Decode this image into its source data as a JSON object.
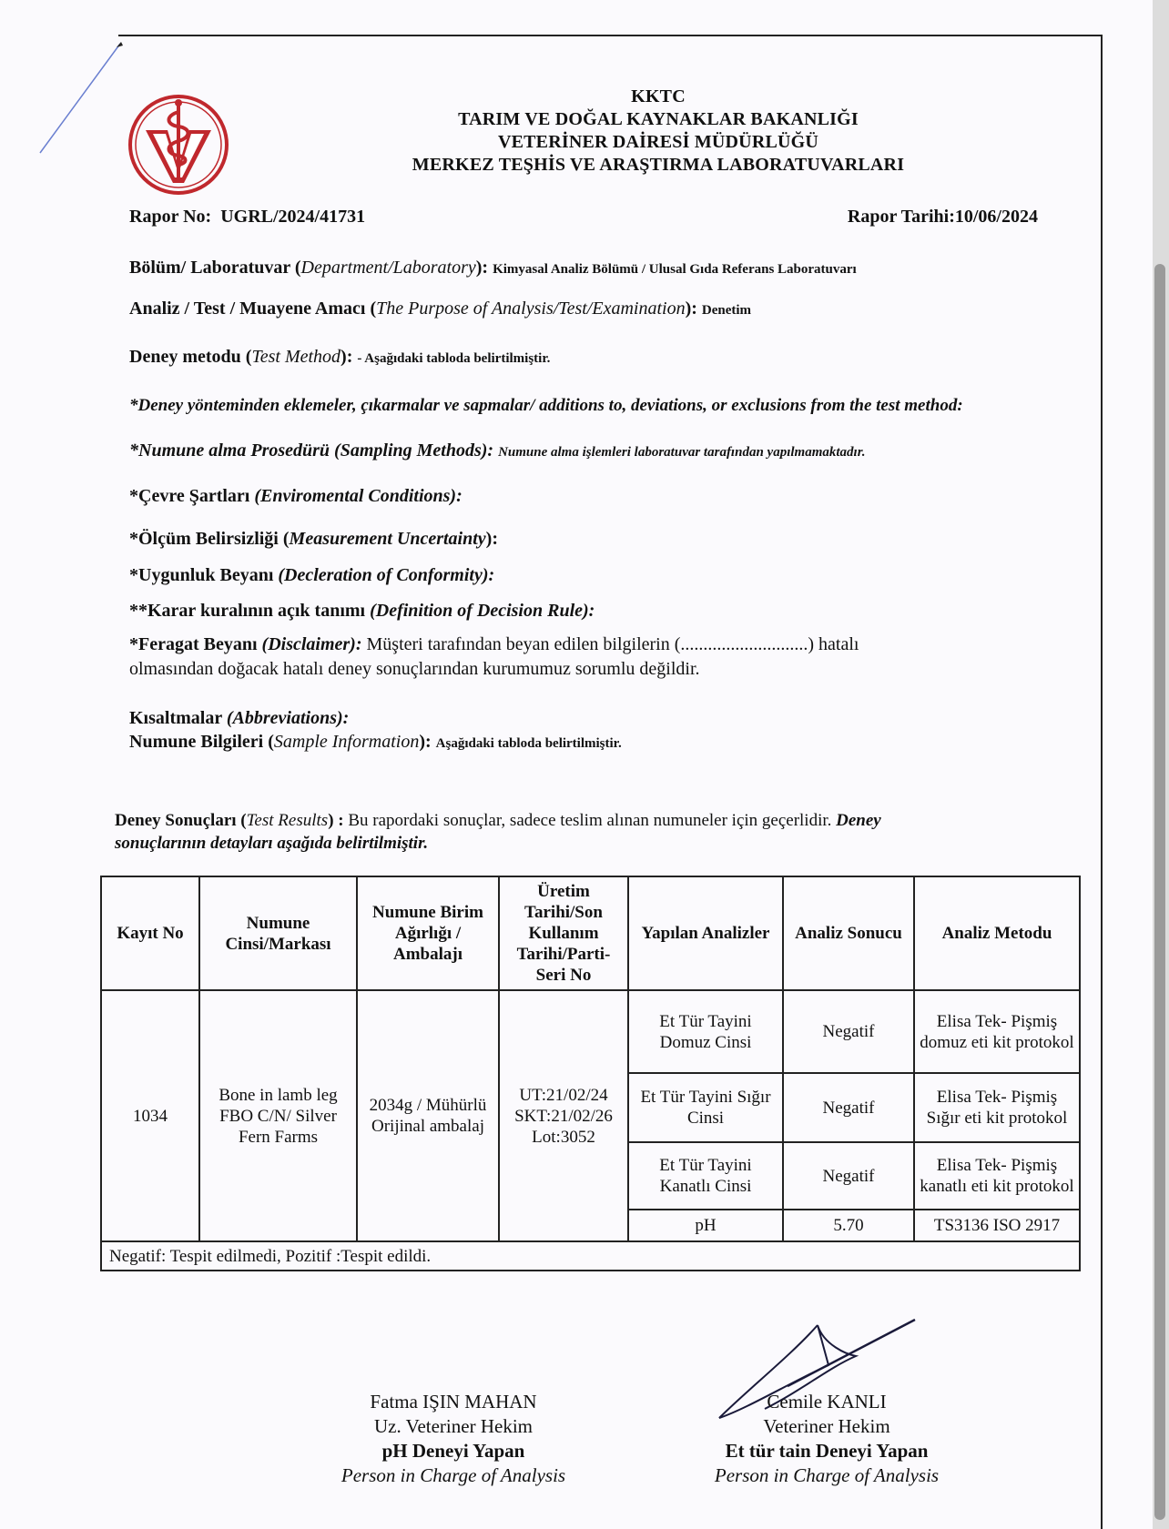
{
  "header": {
    "line1": "KKTC",
    "line2": "TARIM VE DOĞAL KAYNAKLAR BAKANLIĞI",
    "line3": "VETERİNER DAİRESİ MÜDÜRLÜĞÜ",
    "line4": "MERKEZ TEŞHİS VE ARAŞTIRMA LABORATUVARLARI",
    "logo_color": "#c0282d"
  },
  "report": {
    "no_label": "Rapor No:",
    "no_value": "UGRL/2024/41731",
    "date_label": "Rapor Tarihi:",
    "date_value": "10/06/2024"
  },
  "fields": {
    "dept_label": "Bölüm/ Laboratuvar (",
    "dept_label_en": "Department/Laboratory",
    "dept_label_end": "):",
    "dept_value": "Kimyasal Analiz Bölümü / Ulusal Gıda Referans Laboratuvarı",
    "purpose_label": "Analiz / Test / Muayene Amacı (",
    "purpose_label_en": "The Purpose of Analysis/Test/Examination",
    "purpose_label_end": "):",
    "purpose_value": "Denetim",
    "method_label": "Deney metodu (",
    "method_label_en": "Test Method",
    "method_label_end": "):",
    "method_value": "- Aşağıdaki tabloda belirtilmiştir.",
    "deviations": "*Deney yönteminden eklemeler, çıkarmalar ve sapmalar/ additions to, deviations, or exclusions from the test method:",
    "sampling_label": "*Numune alma Prosedürü (Sampling Methods):",
    "sampling_value": "Numune alma işlemleri laboratuvar tarafından yapılmamaktadır.",
    "env_label": "*Çevre Şartları",
    "env_label_en": "(Enviromental Conditions):",
    "uncert_label": "*Ölçüm Belirsizliği (",
    "uncert_label_en": "Measurement Uncertainty",
    "uncert_label_end": "):",
    "conf_label": "*Uygunluk Beyanı",
    "conf_label_en": "(Decleration of Conformity):",
    "rule_label": "**Karar kuralının açık tanımı",
    "rule_label_en": "(Definition of Decision Rule):",
    "disc_label": "*Feragat Beyanı",
    "disc_label_en": "(Disclaimer):",
    "disc_text1": "Müşteri tarafından beyan edilen bilgilerin (............................) hatalı",
    "disc_text2": "olmasından doğacak hatalı deney sonuçlarından kurumumuz sorumlu değildir.",
    "abbr_label": "Kısaltmalar",
    "abbr_label_en": "(Abbreviations):",
    "sample_label": "Numune Bilgileri (",
    "sample_label_en": "Sample Information",
    "sample_label_end": "):",
    "sample_value": "Aşağıdaki tabloda belirtilmiştir."
  },
  "results": {
    "label": "Deney Sonuçları (",
    "label_en": "Test Results",
    "label_end": ") :",
    "text": "Bu rapordaki sonuçlar, sadece teslim alınan numuneler için geçerlidir.",
    "text_bold1": "Deney",
    "text_bold2": "sonuçlarının detayları aşağıda belirtilmiştir."
  },
  "table": {
    "headers": [
      "Kayıt No",
      "Numune Cinsi/Markası",
      "Numune Birim Ağırlığı / Ambalajı",
      "Üretim Tarihi/Son Kullanım Tarihi/Parti-Seri No",
      "Yapılan Analizler",
      "Analiz Sonucu",
      "Analiz Metodu"
    ],
    "record_no": "1034",
    "sample": "Bone in lamb leg FBO C/N/ Silver Fern Farms",
    "weight": "2034g / Mühürlü Orijinal ambalaj",
    "dates": [
      "UT:21/02/24",
      "SKT:21/02/26",
      "Lot:3052"
    ],
    "analyses": [
      {
        "name": "Et Tür Tayini Domuz Cinsi",
        "result": "Negatif",
        "method": "Elisa Tek- Pişmiş domuz eti kit protokol"
      },
      {
        "name": "Et Tür Tayini Sığır Cinsi",
        "result": "Negatif",
        "method": "Elisa Tek- Pişmiş Sığır eti kit protokol"
      },
      {
        "name": "Et Tür Tayini Kanatlı Cinsi",
        "result": "Negatif",
        "method": "Elisa Tek- Pişmiş kanatlı eti kit protokol"
      },
      {
        "name": "pH",
        "result": "5.70",
        "method": "TS3136 ISO 2917"
      }
    ],
    "footnote": "Negatif: Tespit edilmedi, Pozitif :Tespit edildi."
  },
  "signatures": [
    {
      "name": "Fatma IŞIN MAHAN",
      "title": "Uz. Veteriner Hekim",
      "role": "pH Deneyi Yapan",
      "role_en": "Person in Charge of Analysis"
    },
    {
      "name": "Cemile KANLI",
      "title": "Veteriner Hekim",
      "role": "Et tür tain Deneyi Yapan",
      "role_en": "Person in Charge of Analysis"
    }
  ]
}
